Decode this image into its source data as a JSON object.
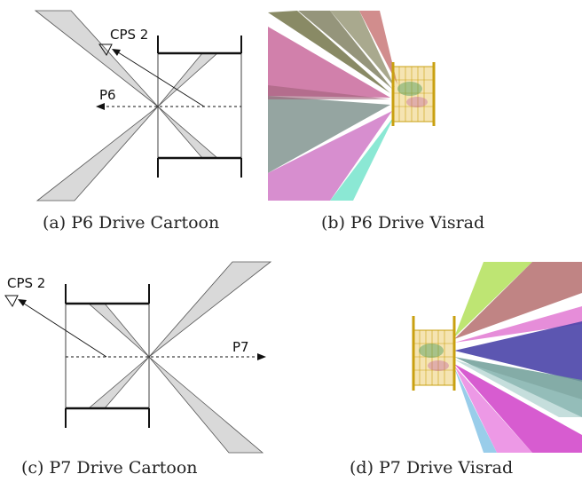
{
  "panels": {
    "a": {
      "caption": "(a) P6 Drive Cartoon",
      "label_cps": "CPS 2",
      "label_beam": "P6"
    },
    "b": {
      "caption": "(b) P6 Drive Visrad"
    },
    "c": {
      "caption": "(c) P7 Drive Cartoon",
      "label_cps": "CPS 2",
      "label_beam": "P7"
    },
    "d": {
      "caption": "(d) P7 Drive Visrad"
    }
  },
  "colors": {
    "cone_fill": "#d9d9d9",
    "line": "#111111",
    "target_gold": "#e0b21a",
    "beam_colors": [
      "#c2558f",
      "#7a8f8a",
      "#9bb3b0",
      "#d07ac7",
      "#7ee6cf",
      "#6b6d3f",
      "#9a9a7a",
      "#c57070",
      "#8fa0a0",
      "#b3e05a",
      "#5a55b0",
      "#e070d0",
      "#8ec8e8",
      "#b56f6f"
    ]
  }
}
